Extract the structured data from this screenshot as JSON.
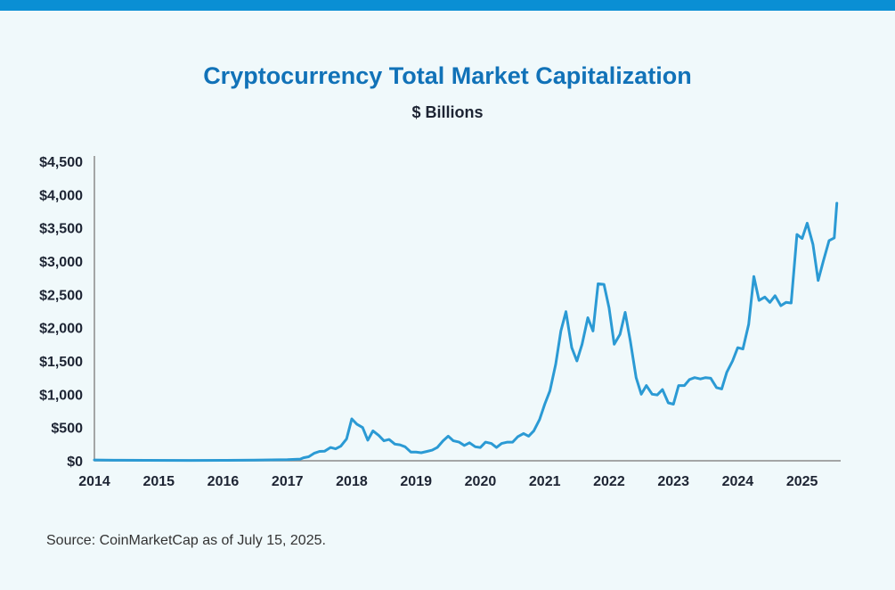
{
  "colors": {
    "top_bar": "#0a8fd4",
    "title": "#1172b8",
    "line": "#2b9ad4",
    "axis": "#8a8a8a",
    "background": "#f0f9fb"
  },
  "source_note": "Source: CoinMarketCap as of July 15, 2025.",
  "chart_data": {
    "type": "line",
    "title": "Cryptocurrency Total Market Capitalization",
    "subtitle": "$ Billions",
    "xlabel": "",
    "ylabel": "",
    "xlim": [
      2014.0,
      2025.6
    ],
    "ylim": [
      0,
      4500
    ],
    "grid": false,
    "x_ticks": [
      "2014",
      "2015",
      "2016",
      "2017",
      "2018",
      "2019",
      "2020",
      "2021",
      "2022",
      "2023",
      "2024",
      "2025"
    ],
    "y_ticks": [
      "$0",
      "$500",
      "$1,000",
      "$1,500",
      "$2,000",
      "$2,500",
      "$3,000",
      "$3,500",
      "$4,000",
      "$4,500"
    ],
    "series": [
      {
        "x": [
          2014.0,
          2014.4,
          2014.8,
          2015.5,
          2016.0,
          2016.5,
          2017.0,
          2017.2,
          2017.25,
          2017.33,
          2017.42,
          2017.5,
          2017.58,
          2017.67,
          2017.75,
          2017.83,
          2017.92,
          2018.0,
          2018.08,
          2018.17,
          2018.25,
          2018.33,
          2018.42,
          2018.5,
          2018.58,
          2018.67,
          2018.75,
          2018.83,
          2018.92,
          2019.0,
          2019.08,
          2019.17,
          2019.25,
          2019.33,
          2019.42,
          2019.5,
          2019.58,
          2019.67,
          2019.75,
          2019.83,
          2019.92,
          2020.0,
          2020.08,
          2020.17,
          2020.25,
          2020.33,
          2020.42,
          2020.5,
          2020.58,
          2020.67,
          2020.75,
          2020.83,
          2020.92,
          2021.0,
          2021.08,
          2021.17,
          2021.25,
          2021.33,
          2021.42,
          2021.5,
          2021.58,
          2021.67,
          2021.75,
          2021.83,
          2021.92,
          2022.0,
          2022.08,
          2022.17,
          2022.25,
          2022.33,
          2022.42,
          2022.5,
          2022.58,
          2022.67,
          2022.75,
          2022.83,
          2022.92,
          2023.0,
          2023.08,
          2023.17,
          2023.25,
          2023.33,
          2023.42,
          2023.5,
          2023.58,
          2023.67,
          2023.75,
          2023.83,
          2023.92,
          2024.0,
          2024.08,
          2024.17,
          2024.25,
          2024.33,
          2024.42,
          2024.5,
          2024.58,
          2024.67,
          2024.75,
          2024.83,
          2024.92,
          2025.0,
          2025.08,
          2025.17,
          2025.25,
          2025.33,
          2025.42,
          2025.5,
          2025.54
        ],
        "values": [
          12,
          8,
          7,
          5,
          7,
          10,
          17,
          25,
          45,
          60,
          115,
          140,
          145,
          200,
          180,
          220,
          330,
          630,
          550,
          500,
          310,
          450,
          380,
          300,
          320,
          250,
          240,
          210,
          130,
          130,
          120,
          140,
          160,
          200,
          300,
          370,
          300,
          280,
          230,
          270,
          210,
          200,
          280,
          260,
          200,
          260,
          280,
          280,
          360,
          410,
          370,
          450,
          620,
          850,
          1050,
          1450,
          1950,
          2240,
          1700,
          1500,
          1750,
          2150,
          1950,
          2660,
          2650,
          2300,
          1750,
          1900,
          2230,
          1800,
          1250,
          1000,
          1130,
          1000,
          990,
          1070,
          870,
          850,
          1130,
          1130,
          1220,
          1250,
          1230,
          1250,
          1240,
          1100,
          1080,
          1330,
          1500,
          1700,
          1680,
          2050,
          2770,
          2410,
          2460,
          2380,
          2480,
          2330,
          2380,
          2370,
          3400,
          3340,
          3570,
          3250,
          2710,
          3000,
          3310,
          3350,
          3870
        ]
      }
    ]
  }
}
